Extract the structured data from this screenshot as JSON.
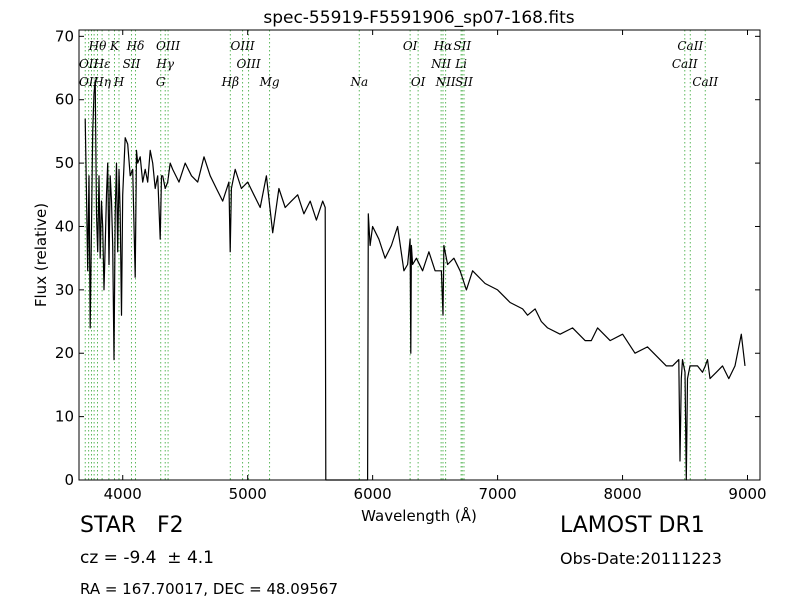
{
  "chart_data": {
    "type": "line",
    "title": "spec-55919-F5591906_sp07-168.fits",
    "xlabel": "Wavelength (Å)",
    "ylabel": "Flux (relative)",
    "xlim": [
      3650,
      9100
    ],
    "ylim": [
      0,
      71
    ],
    "xticks": [
      4000,
      5000,
      6000,
      7000,
      8000,
      9000
    ],
    "yticks": [
      0,
      10,
      20,
      30,
      40,
      50,
      60,
      70
    ],
    "grid": false,
    "series": [
      {
        "color": "#000000",
        "x": [
          3700,
          3710,
          3720,
          3730,
          3740,
          3750,
          3760,
          3770,
          3780,
          3790,
          3800,
          3810,
          3820,
          3830,
          3840,
          3850,
          3860,
          3870,
          3880,
          3890,
          3900,
          3910,
          3920,
          3930,
          3940,
          3950,
          3960,
          3970,
          3980,
          3990,
          4000,
          4020,
          4040,
          4060,
          4080,
          4100,
          4110,
          4120,
          4140,
          4160,
          4180,
          4200,
          4220,
          4240,
          4260,
          4280,
          4300,
          4310,
          4320,
          4340,
          4360,
          4380,
          4400,
          4450,
          4500,
          4550,
          4600,
          4650,
          4700,
          4750,
          4800,
          4850,
          4860,
          4870,
          4900,
          4950,
          5000,
          5050,
          5100,
          5150,
          5200,
          5250,
          5300,
          5350,
          5400,
          5450,
          5500,
          5550,
          5600,
          5620,
          5625,
          5960,
          5965,
          5980,
          6000,
          6050,
          6100,
          6150,
          6200,
          6250,
          6280,
          6300,
          6305,
          6310,
          6320,
          6350,
          6400,
          6450,
          6500,
          6550,
          6563,
          6570,
          6600,
          6650,
          6700,
          6750,
          6800,
          6900,
          7000,
          7100,
          7200,
          7240,
          7300,
          7350,
          7400,
          7500,
          7600,
          7650,
          7700,
          7750,
          7800,
          7900,
          8000,
          8100,
          8200,
          8300,
          8350,
          8400,
          8450,
          8460,
          8470,
          8480,
          8500,
          8510,
          8520,
          8540,
          8560,
          8600,
          8640,
          8662,
          8680,
          8700,
          8750,
          8800,
          8850,
          8900,
          8950,
          8980
        ],
        "y": [
          57,
          45,
          33,
          48,
          24,
          40,
          55,
          61,
          63,
          42,
          36,
          48,
          35,
          44,
          40,
          30,
          37,
          45,
          50,
          34,
          48,
          44,
          37,
          19,
          42,
          50,
          36,
          49,
          42,
          26,
          45,
          54,
          53,
          48,
          49,
          32,
          52,
          50,
          51,
          47,
          49,
          47,
          52,
          50,
          46,
          48,
          38,
          48,
          48,
          46,
          47,
          50,
          49,
          47,
          50,
          48,
          47,
          51,
          48,
          46,
          44,
          47,
          36,
          46,
          49,
          46,
          47,
          45,
          43,
          48,
          39,
          46,
          43,
          44,
          45,
          42,
          44,
          41,
          44,
          43,
          0,
          0,
          42,
          37,
          40,
          38,
          35,
          37,
          40,
          33,
          34,
          38,
          20,
          37,
          34,
          35,
          33,
          36,
          33,
          33,
          26,
          37,
          34,
          35,
          33,
          30,
          33,
          31,
          30,
          28,
          27,
          26,
          27,
          25,
          24,
          23,
          24,
          23,
          22,
          22,
          24,
          22,
          23,
          20,
          21,
          19,
          18,
          18,
          19,
          3,
          16,
          19,
          17,
          0,
          16,
          18,
          18,
          18,
          17,
          18,
          19,
          16,
          17,
          18,
          16,
          18,
          23,
          18
        ]
      }
    ],
    "spectral_lines": [
      {
        "label": "Hθ",
        "wavelength": 3798,
        "row": 0
      },
      {
        "label": "K",
        "wavelength": 3934,
        "row": 0
      },
      {
        "label": "Hδ",
        "wavelength": 4102,
        "row": 0
      },
      {
        "label": "OIII",
        "wavelength": 4363,
        "row": 0
      },
      {
        "label": "OIII",
        "wavelength": 4959,
        "row": 0
      },
      {
        "label": "OI",
        "wavelength": 6300,
        "row": 0
      },
      {
        "label": "Hα",
        "wavelength": 6563,
        "row": 0
      },
      {
        "label": "SII",
        "wavelength": 6717,
        "row": 0
      },
      {
        "label": "CaII",
        "wavelength": 8542,
        "row": 0
      },
      {
        "label": "OII",
        "wavelength": 3727,
        "row": 1
      },
      {
        "label": "Hε",
        "wavelength": 3835,
        "row": 1
      },
      {
        "label": "SII",
        "wavelength": 4070,
        "row": 1
      },
      {
        "label": "Hγ",
        "wavelength": 4340,
        "row": 1
      },
      {
        "label": "OIII",
        "wavelength": 5007,
        "row": 1
      },
      {
        "label": "NII",
        "wavelength": 6548,
        "row": 1
      },
      {
        "label": "Li",
        "wavelength": 6708,
        "row": 1
      },
      {
        "label": "CaII",
        "wavelength": 8498,
        "row": 1
      },
      {
        "label": "OII",
        "wavelength": 3727,
        "row": 2
      },
      {
        "label": "Hη",
        "wavelength": 3835,
        "row": 2
      },
      {
        "label": "H",
        "wavelength": 3970,
        "row": 2
      },
      {
        "label": "G",
        "wavelength": 4304,
        "row": 2
      },
      {
        "label": "Hβ",
        "wavelength": 4861,
        "row": 2
      },
      {
        "label": "Mg",
        "wavelength": 5175,
        "row": 2
      },
      {
        "label": "Na",
        "wavelength": 5893,
        "row": 2
      },
      {
        "label": "OI",
        "wavelength": 6364,
        "row": 2
      },
      {
        "label": "NII",
        "wavelength": 6584,
        "row": 2
      },
      {
        "label": "SII",
        "wavelength": 6731,
        "row": 2
      },
      {
        "label": "CaII",
        "wavelength": 8662,
        "row": 2
      }
    ],
    "line_markers_x": [
      3700,
      3727,
      3750,
      3771,
      3798,
      3835,
      3889,
      3934,
      3970,
      4070,
      4102,
      4304,
      4340,
      4363,
      4861,
      4959,
      5007,
      5175,
      5893,
      6300,
      6364,
      6548,
      6563,
      6584,
      6708,
      6717,
      6731,
      8498,
      8542,
      8662
    ],
    "line_marker_color": "#5cb85c",
    "line_color": "#000000"
  },
  "info": {
    "class": "STAR   F2",
    "survey": "LAMOST DR1",
    "cz": "cz = -9.4  ± 4.1",
    "obs_date": "Obs-Date:20111223",
    "radec": "RA = 167.70017, DEC = 48.09567"
  }
}
